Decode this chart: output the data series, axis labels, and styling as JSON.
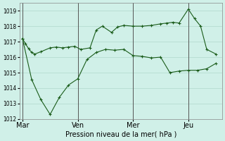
{
  "background_color": "#d0f0e8",
  "grid_color": "#b0d8cc",
  "line_color": "#1a5c1a",
  "marker": "+",
  "xlabel": "Pression niveau de la mer( hPa )",
  "ylim": [
    1012,
    1019.5
  ],
  "yticks": [
    1012,
    1013,
    1014,
    1015,
    1016,
    1017,
    1018,
    1019
  ],
  "xtick_labels": [
    "Mar",
    "Ven",
    "Mer",
    "Jeu"
  ],
  "xtick_positions": [
    0,
    18,
    36,
    54
  ],
  "series1_x": [
    0,
    1,
    2,
    3,
    4,
    6,
    9,
    11,
    13,
    15,
    17,
    19,
    22,
    24,
    26,
    29,
    31,
    33,
    36,
    39,
    42,
    45,
    47,
    49,
    51,
    54,
    56,
    58,
    60,
    63
  ],
  "series1_y": [
    1017.2,
    1016.85,
    1016.55,
    1016.3,
    1016.2,
    1016.35,
    1016.6,
    1016.65,
    1016.6,
    1016.65,
    1016.7,
    1016.5,
    1016.6,
    1017.75,
    1018.0,
    1017.6,
    1017.95,
    1018.05,
    1018.0,
    1018.0,
    1018.05,
    1018.15,
    1018.2,
    1018.25,
    1018.2,
    1019.1,
    1018.5,
    1018.0,
    1016.5,
    1016.2
  ],
  "series2_x": [
    0,
    3,
    6,
    9,
    12,
    15,
    18,
    21,
    24,
    27,
    30,
    33,
    36,
    39,
    42,
    45,
    48,
    51,
    54,
    57,
    60,
    63
  ],
  "series2_y": [
    1017.2,
    1014.55,
    1013.25,
    1012.3,
    1013.4,
    1014.2,
    1014.6,
    1015.85,
    1016.3,
    1016.5,
    1016.45,
    1016.5,
    1016.1,
    1016.05,
    1015.95,
    1016.0,
    1015.0,
    1015.1,
    1015.15,
    1015.15,
    1015.25,
    1015.6
  ],
  "vline_positions": [
    0,
    18,
    36,
    54
  ],
  "vline_color": "#555555",
  "xlim": [
    -1,
    65
  ]
}
